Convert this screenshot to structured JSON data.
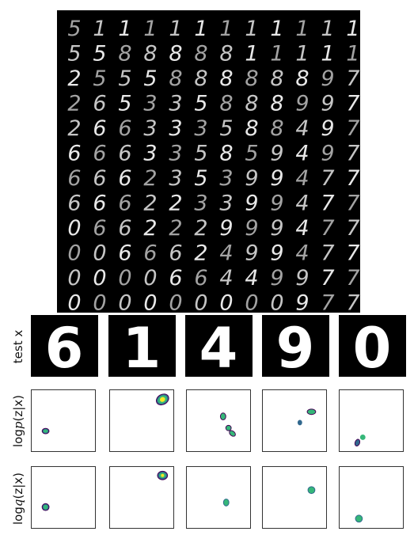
{
  "manifold": {
    "rows": [
      [
        "5",
        "1",
        "1",
        "1",
        "1",
        "1",
        "1",
        "1",
        "1",
        "1",
        "1",
        "1"
      ],
      [
        "5",
        "5",
        "8",
        "8",
        "8",
        "8",
        "8",
        "1",
        "1",
        "1",
        "1",
        "1"
      ],
      [
        "2",
        "5",
        "5",
        "5",
        "8",
        "8",
        "8",
        "8",
        "8",
        "8",
        "9",
        "7"
      ],
      [
        "2",
        "6",
        "5",
        "3",
        "3",
        "5",
        "8",
        "8",
        "8",
        "9",
        "9",
        "7"
      ],
      [
        "2",
        "6",
        "6",
        "3",
        "3",
        "3",
        "5",
        "8",
        "8",
        "4",
        "9",
        "7"
      ],
      [
        "6",
        "6",
        "6",
        "3",
        "3",
        "5",
        "8",
        "5",
        "9",
        "4",
        "9",
        "7"
      ],
      [
        "6",
        "6",
        "6",
        "2",
        "3",
        "5",
        "3",
        "9",
        "9",
        "4",
        "7",
        "7"
      ],
      [
        "6",
        "6",
        "6",
        "2",
        "2",
        "3",
        "3",
        "9",
        "9",
        "4",
        "7",
        "7"
      ],
      [
        "0",
        "6",
        "6",
        "2",
        "2",
        "2",
        "9",
        "9",
        "9",
        "4",
        "7",
        "7"
      ],
      [
        "0",
        "0",
        "6",
        "6",
        "6",
        "2",
        "4",
        "9",
        "9",
        "4",
        "7",
        "7"
      ],
      [
        "0",
        "0",
        "0",
        "0",
        "6",
        "6",
        "4",
        "4",
        "9",
        "9",
        "7",
        "7"
      ],
      [
        "0",
        "0",
        "0",
        "0",
        "0",
        "0",
        "0",
        "0",
        "0",
        "9",
        "7",
        "7"
      ]
    ]
  },
  "labels": {
    "test_x": "test x",
    "posterior_prefix": "log",
    "posterior_sym": "p",
    "posterior_suffix": "(z|x)",
    "approx_prefix": "log",
    "approx_sym": "q",
    "approx_suffix": "(z|x)"
  },
  "test_digits": [
    "6",
    "1",
    "4",
    "9",
    "0"
  ],
  "colors": {
    "contour_outer": "#440154",
    "contour_mid": "#31688e",
    "contour_inner": "#35b779",
    "contour_core": "#fde725",
    "frame": "#333333"
  }
}
